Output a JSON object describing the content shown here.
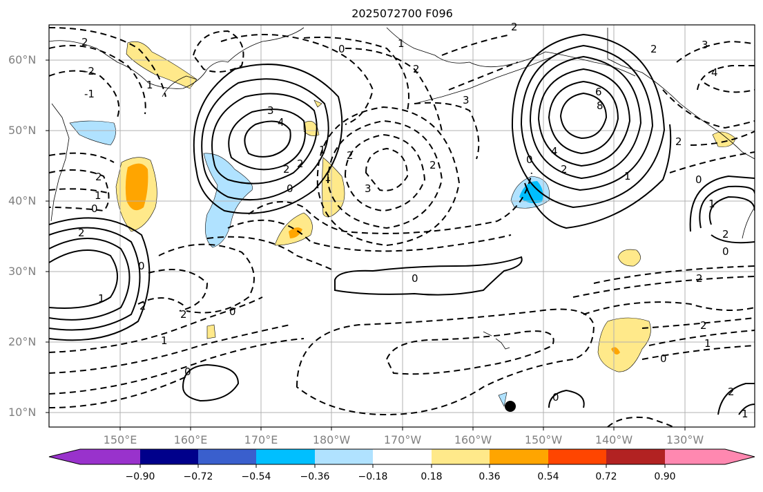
{
  "title": "2025072700 F096",
  "map": {
    "lat_ticks": [
      "60°N",
      "50°N",
      "40°N",
      "30°N",
      "20°N",
      "10°N"
    ],
    "lon_ticks": [
      "150°E",
      "160°E",
      "170°E",
      "180°W",
      "170°W",
      "160°W",
      "150°W",
      "140°W",
      "130°W"
    ],
    "contour_labels": [
      "2",
      "1",
      "0",
      "-1",
      "-2",
      "2",
      "3",
      "4",
      "0",
      "2",
      "1",
      "2",
      "3",
      "2",
      "1",
      "0",
      "1",
      "2",
      "2",
      "3",
      "6",
      "8",
      "4",
      "2",
      "0",
      "1",
      "2",
      "3",
      "4",
      "2",
      "2",
      "1",
      "2",
      "0",
      "1",
      "0",
      "2",
      "1",
      "2",
      "0",
      "0",
      "0",
      "2",
      "1",
      "2",
      "0",
      "0",
      "1",
      "2",
      "1",
      "0",
      "2"
    ],
    "marker": "filled-circle"
  },
  "colorbar": {
    "ticks": [
      "−0.90",
      "−0.72",
      "−0.54",
      "−0.36",
      "−0.18",
      "0.18",
      "0.36",
      "0.54",
      "0.72",
      "0.90"
    ],
    "colors": [
      "#9932cc",
      "#00008b",
      "#3a5fcd",
      "#00bfff",
      "#b0e2ff",
      "#ffffff",
      "#ffe98a",
      "#ffa500",
      "#ff4500",
      "#b22222",
      "#ff88b0"
    ]
  }
}
